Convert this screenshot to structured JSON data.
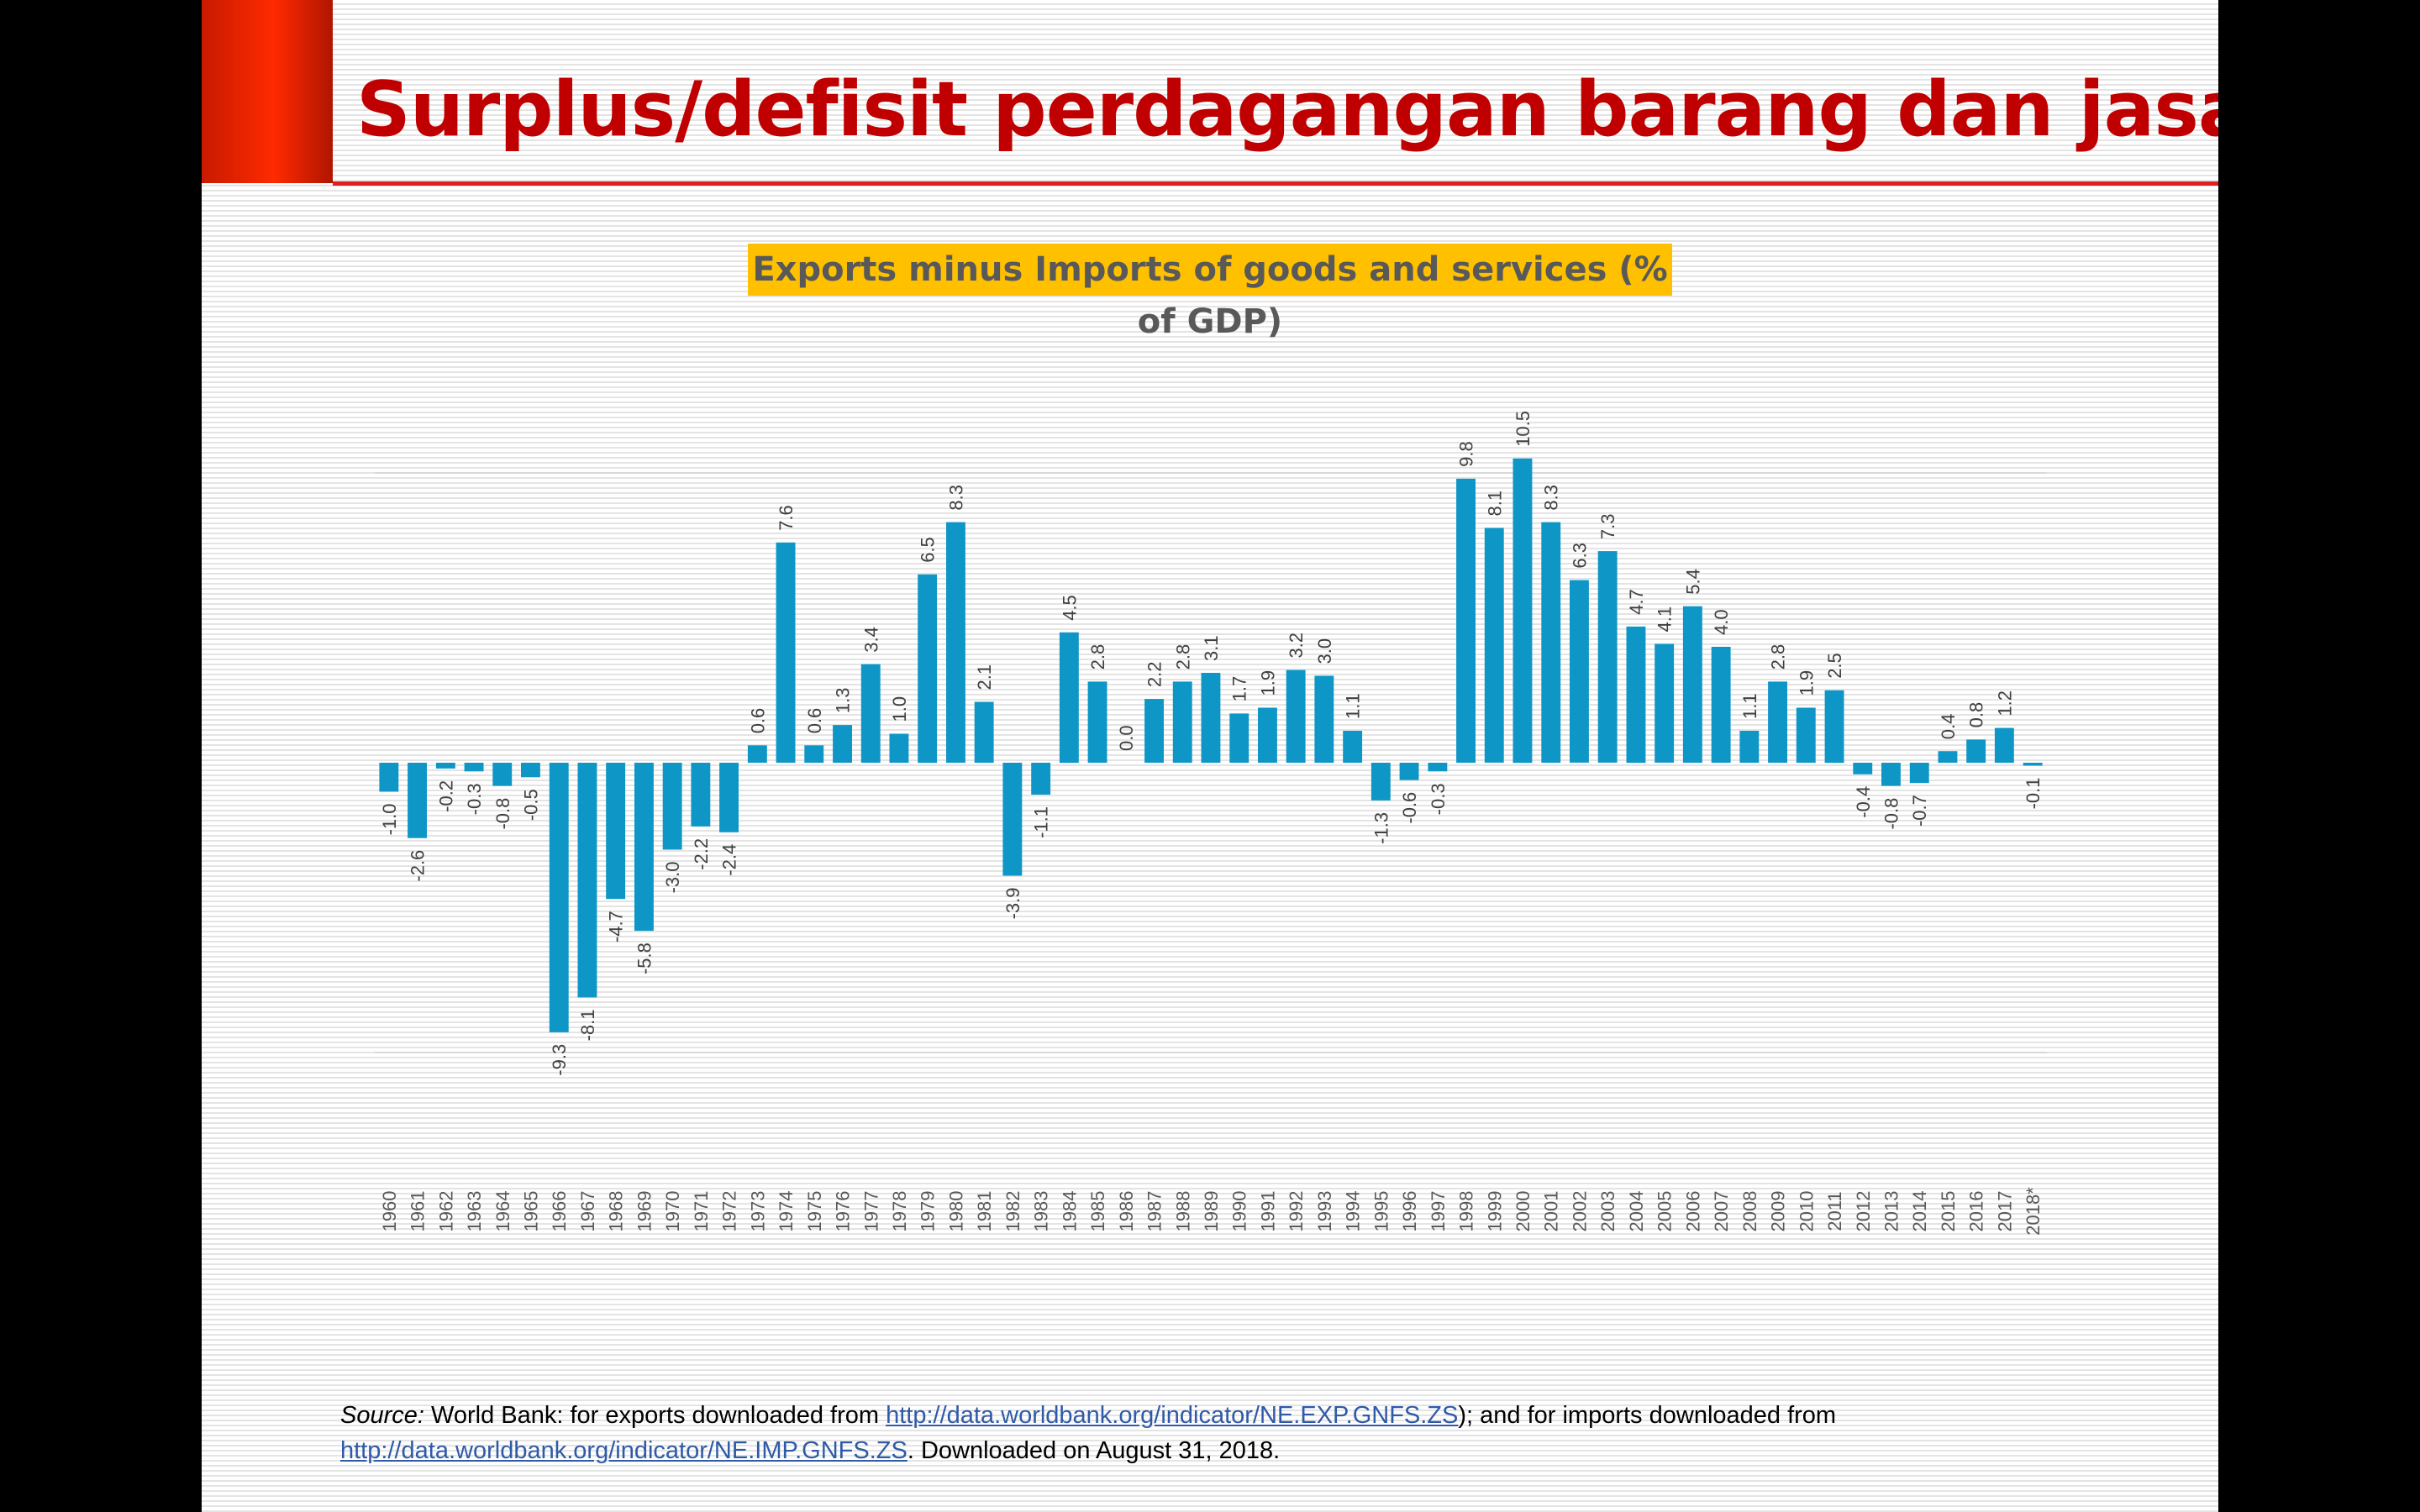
{
  "slide": {
    "title": "Surplus/defisit perdagangan barang dan jasa"
  },
  "source": {
    "label": "Source:",
    "text1": " World Bank: for exports downloaded from ",
    "link1": "http://data.worldbank.org/indicator/NE.EXP.GNFS.ZS",
    "text2": "); and for imports downloaded from ",
    "link2": "http://data.worldbank.org/indicator/NE.IMP.GNFS.ZS",
    "text3": ". Downloaded on August 31, 2018."
  },
  "colors": {
    "bar": "#0e97c6",
    "title": "#c00000",
    "chart_title_bg": "#ffc000",
    "label": "#404040",
    "tick": "#595959",
    "grid": "#d9d9d9"
  },
  "chart_data": {
    "type": "bar",
    "title": "Exports minus Imports of goods and services (% of GDP)",
    "xlabel": "",
    "ylabel": "",
    "ylim": [
      -10,
      10
    ],
    "grid": true,
    "categories": [
      "1960",
      "1961",
      "1962",
      "1963",
      "1964",
      "1965",
      "1966",
      "1967",
      "1968",
      "1969",
      "1970",
      "1971",
      "1972",
      "1973",
      "1974",
      "1975",
      "1976",
      "1977",
      "1978",
      "1979",
      "1980",
      "1981",
      "1982",
      "1983",
      "1984",
      "1985",
      "1986",
      "1987",
      "1988",
      "1989",
      "1990",
      "1991",
      "1992",
      "1993",
      "1994",
      "1995",
      "1996",
      "1997",
      "1998",
      "1999",
      "2000",
      "2001",
      "2002",
      "2003",
      "2004",
      "2005",
      "2006",
      "2007",
      "2008",
      "2009",
      "2010",
      "2011",
      "2012",
      "2013",
      "2014",
      "2015",
      "2016",
      "2017",
      "2018*"
    ],
    "values": [
      -1.0,
      -2.6,
      -0.2,
      -0.3,
      -0.8,
      -0.5,
      -9.3,
      -8.1,
      -4.7,
      -5.8,
      -3.0,
      -2.2,
      -2.4,
      0.6,
      7.6,
      0.6,
      1.3,
      3.4,
      1.0,
      6.5,
      8.3,
      2.1,
      -3.9,
      -1.1,
      4.5,
      2.8,
      0.0,
      2.2,
      2.8,
      3.1,
      1.7,
      1.9,
      3.2,
      3.0,
      1.1,
      -1.3,
      -0.6,
      -0.3,
      9.8,
      8.1,
      10.5,
      8.3,
      6.3,
      7.3,
      4.7,
      4.1,
      5.4,
      4.0,
      1.1,
      2.8,
      1.9,
      2.5,
      -0.4,
      -0.8,
      -0.7,
      0.4,
      0.8,
      1.2,
      -0.1
    ],
    "value_labels": [
      "-1.0",
      "-2.6",
      "-0.2",
      "-0.3",
      "-0.8",
      "-0.5",
      "-9.3",
      "-8.1",
      "-4.7",
      "-5.8",
      "-3.0",
      "-2.2",
      "-2.4",
      "0.6",
      "7.6",
      "0.6",
      "1.3",
      "3.4",
      "1.0",
      "6.5",
      "8.3",
      "2.1",
      "-3.9",
      "-1.1",
      "4.5",
      "2.8",
      "0.0",
      "2.2",
      "2.8",
      "3.1",
      "1.7",
      "1.9",
      "3.2",
      "3.0",
      "1.1",
      "-1.3",
      "-0.6",
      "-0.3",
      "9.8",
      "8.1",
      "10.5",
      "8.3",
      "6.3",
      "7.3",
      "4.7",
      "4.1",
      "5.4",
      "4.0",
      "1.1",
      "2.8",
      "1.9",
      "2.5",
      "-0.4",
      "-0.8",
      "-0.7",
      "0.4",
      "0.8",
      "1.2",
      "-0.1"
    ]
  }
}
